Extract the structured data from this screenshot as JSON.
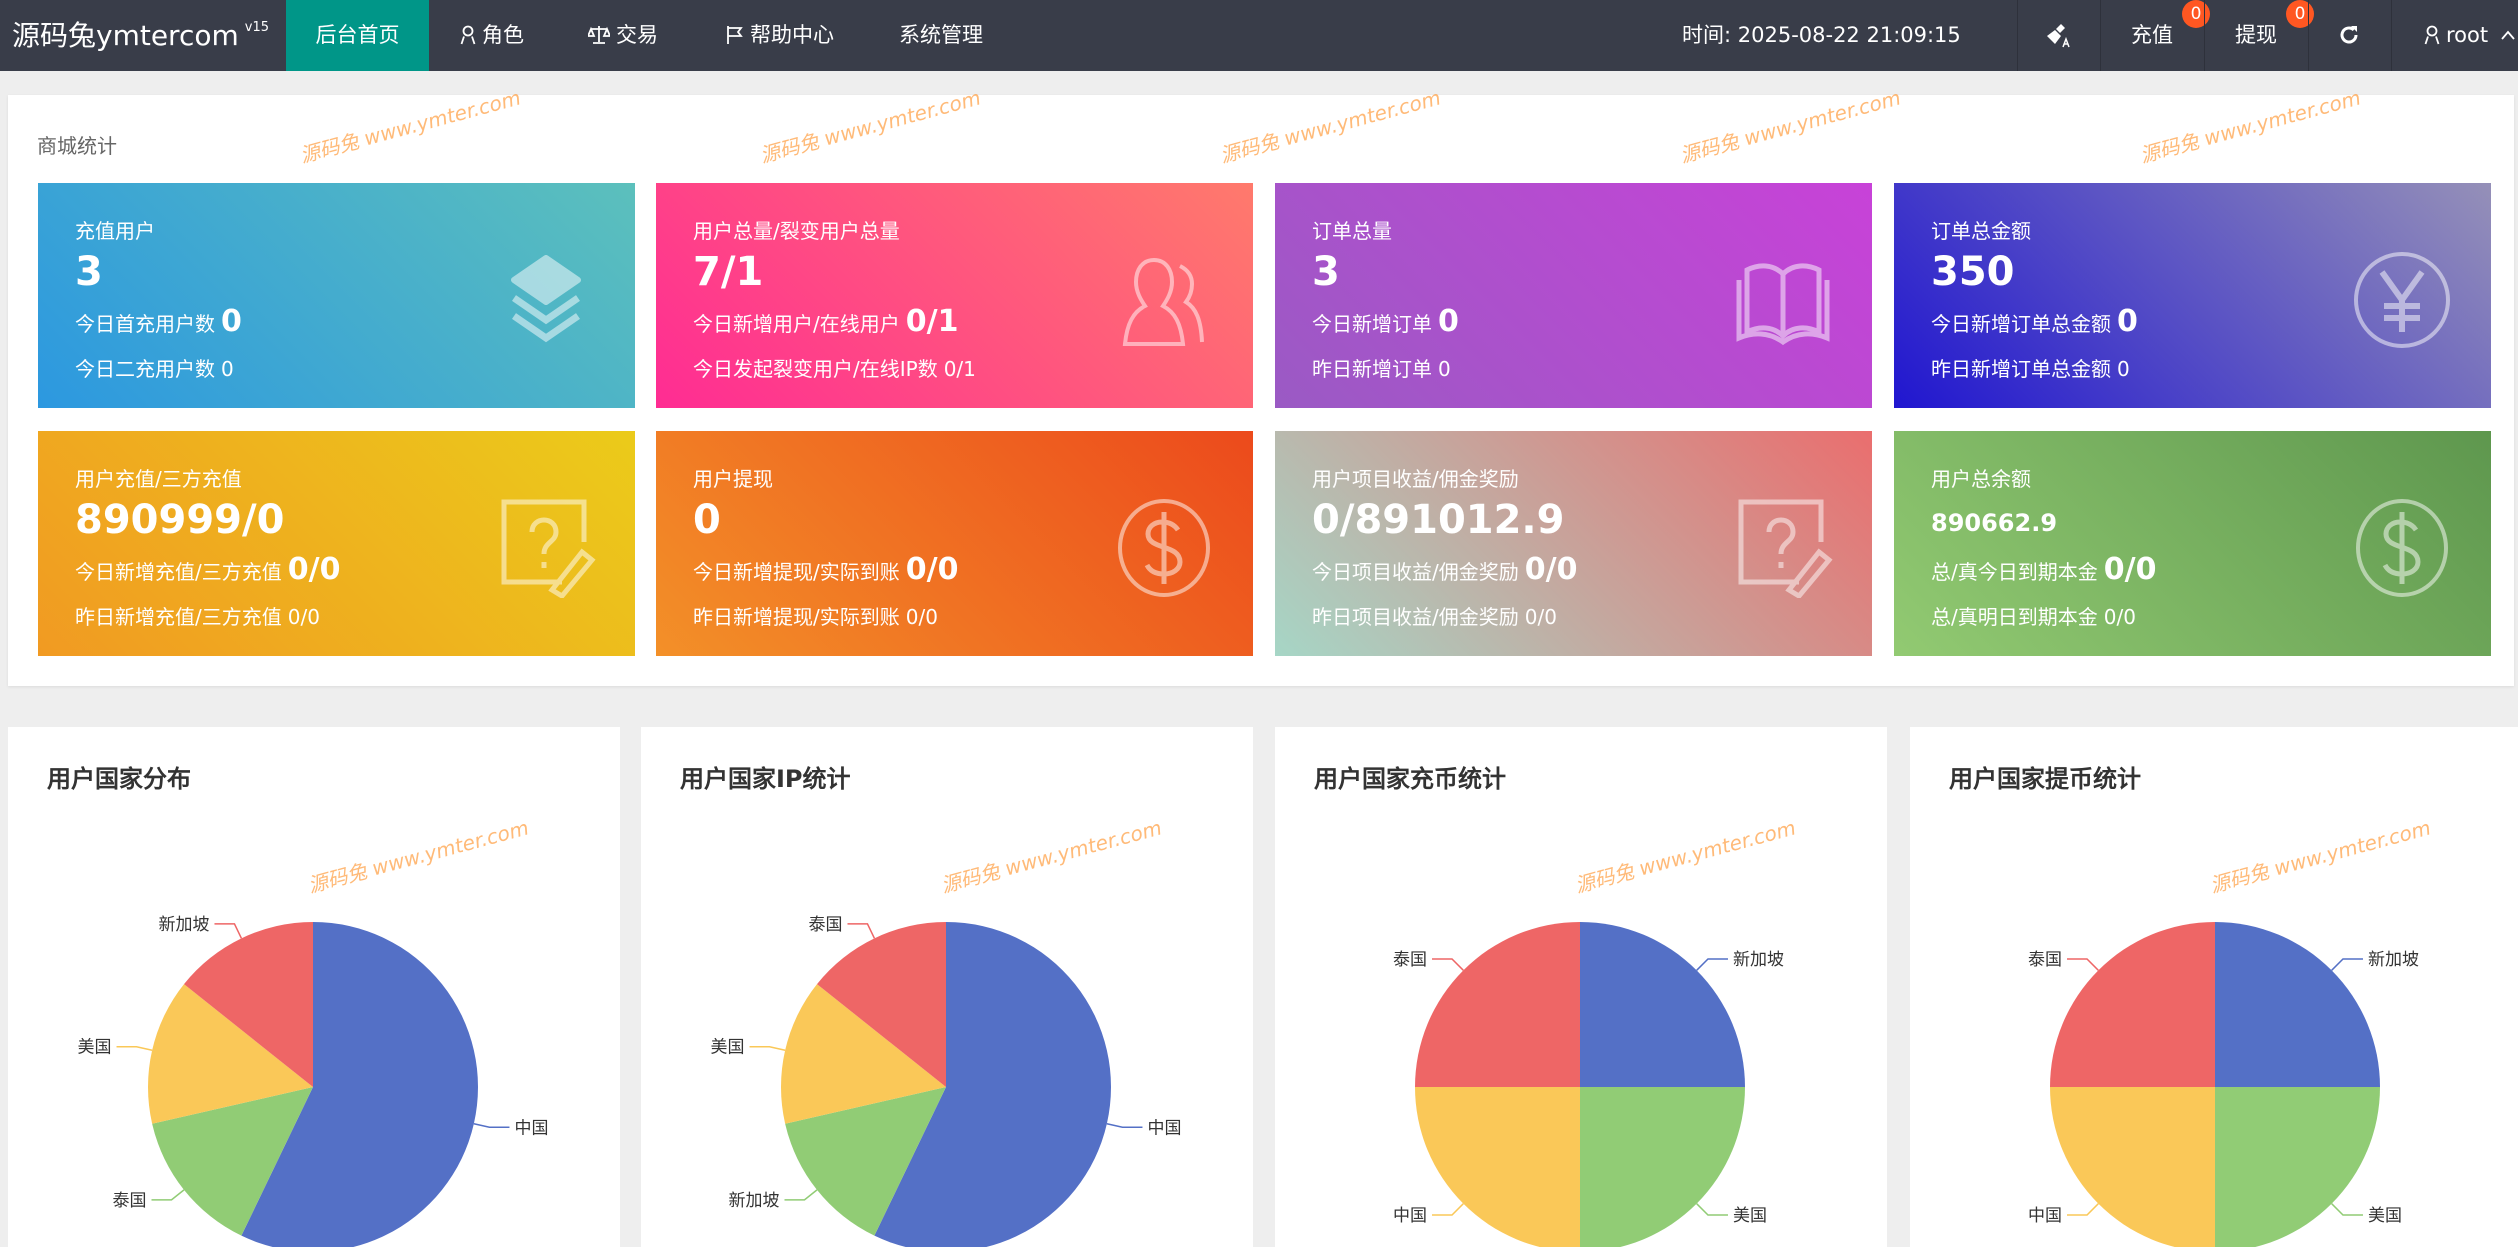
{
  "header": {
    "logo": "源码兔ymtercom",
    "version": "v15",
    "nav": [
      {
        "label": "后台首页",
        "icon": "none",
        "active": true
      },
      {
        "label": "角色",
        "icon": "user-icon"
      },
      {
        "label": "交易",
        "icon": "scale-icon"
      },
      {
        "label": "帮助中心",
        "icon": "flag-icon"
      },
      {
        "label": "系统管理",
        "icon": "none"
      }
    ],
    "time": "时间: 2025-08-22 21:09:15",
    "recharge": {
      "label": "充值",
      "badge": "0"
    },
    "withdraw": {
      "label": "提现",
      "badge": "0"
    },
    "user": "root",
    "badge_color": "#FF5722",
    "active_color": "#009688"
  },
  "section_title": "商城统计",
  "cards": [
    {
      "title": "充值用户",
      "value": "3",
      "line1_label": "今日首充用户数",
      "line1_value": "0",
      "line2_label": "今日二充用户数",
      "line2_value": "0",
      "icon": "layers-icon",
      "gradient": [
        "#2c98e0",
        "#5cc0bc"
      ]
    },
    {
      "title": "用户总量/裂变用户总量",
      "value": "7/1",
      "line1_label": "今日新增用户/在线用户",
      "line1_value": "0/1",
      "line2_label": "今日发起裂变用户/在线IP数",
      "line2_value": "0/1",
      "icon": "users-icon",
      "gradient": [
        "#ff2c93",
        "#ff7a6c"
      ]
    },
    {
      "title": "订单总量",
      "value": "3",
      "line1_label": "今日新增订单",
      "line1_value": "0",
      "line2_label": "昨日新增订单",
      "line2_value": "0",
      "icon": "book-icon",
      "gradient": [
        "#9a5ac4",
        "#c842d8"
      ]
    },
    {
      "title": "订单总金额",
      "value": "350",
      "line1_label": "今日新增订单总金额",
      "line1_value": "0",
      "line2_label": "昨日新增订单总金额",
      "line2_value": "0",
      "icon": "yen-icon",
      "gradient": [
        "#2016d0",
        "#9590b8"
      ]
    },
    {
      "title": "用户充值/三方充值",
      "value": "890999/0",
      "line1_label": "今日新增充值/三方充值",
      "line1_value": "0/0",
      "line2_label": "昨日新增充值/三方充值",
      "line2_value": "0/0",
      "icon": "question-doc-icon",
      "gradient": [
        "#f19a22",
        "#ebcb1a"
      ]
    },
    {
      "title": "用户提现",
      "value": "0",
      "line1_label": "今日新增提现/实际到账",
      "line1_value": "0/0",
      "line2_label": "昨日新增提现/实际到账",
      "line2_value": "0/0",
      "icon": "dollar-icon",
      "gradient": [
        "#f39028",
        "#ec4a1c"
      ]
    },
    {
      "title": "用户项目收益/佣金奖励",
      "value": "0/891012.9",
      "line1_label": "今日项目收益/佣金奖励",
      "line1_value": "0/0",
      "line2_label": "昨日项目收益/佣金奖励",
      "line2_value": "0/0",
      "icon": "question-doc-icon",
      "gradient": [
        "#a6d6c6",
        "#ea6e6e"
      ]
    },
    {
      "title": "用户总余额",
      "value": "890662.9",
      "line1_label": "总/真今日到期本金",
      "line1_value": "0/0",
      "line2_label": "总/真明日到期本金",
      "line2_value": "0/0",
      "icon": "dollar-icon",
      "gradient": [
        "#92ca72",
        "#5e974e"
      ]
    }
  ],
  "chart_data": [
    {
      "type": "pie",
      "title": "用户国家分布",
      "categories": [
        "中国",
        "泰国",
        "美国",
        "新加坡"
      ],
      "values": [
        4,
        1,
        1,
        1
      ],
      "colors": [
        "#5470c6",
        "#91cc75",
        "#fac858",
        "#ee6666"
      ]
    },
    {
      "type": "pie",
      "title": "用户国家IP统计",
      "categories": [
        "中国",
        "新加坡",
        "美国",
        "泰国"
      ],
      "values": [
        4,
        1,
        1,
        1
      ],
      "colors": [
        "#5470c6",
        "#91cc75",
        "#fac858",
        "#ee6666"
      ]
    },
    {
      "type": "pie",
      "title": "用户国家充币统计",
      "categories": [
        "新加坡",
        "美国",
        "中国",
        "泰国"
      ],
      "values": [
        1,
        1,
        1,
        1
      ],
      "colors": [
        "#5470c6",
        "#91cc75",
        "#fac858",
        "#ee6666"
      ]
    },
    {
      "type": "pie",
      "title": "用户国家提币统计",
      "categories": [
        "新加坡",
        "美国",
        "中国",
        "泰国"
      ],
      "values": [
        1,
        1,
        1,
        1
      ],
      "colors": [
        "#5470c6",
        "#91cc75",
        "#fac858",
        "#ee6666"
      ]
    }
  ],
  "watermark": {
    "text": "源码兔  www.ymter.com"
  }
}
